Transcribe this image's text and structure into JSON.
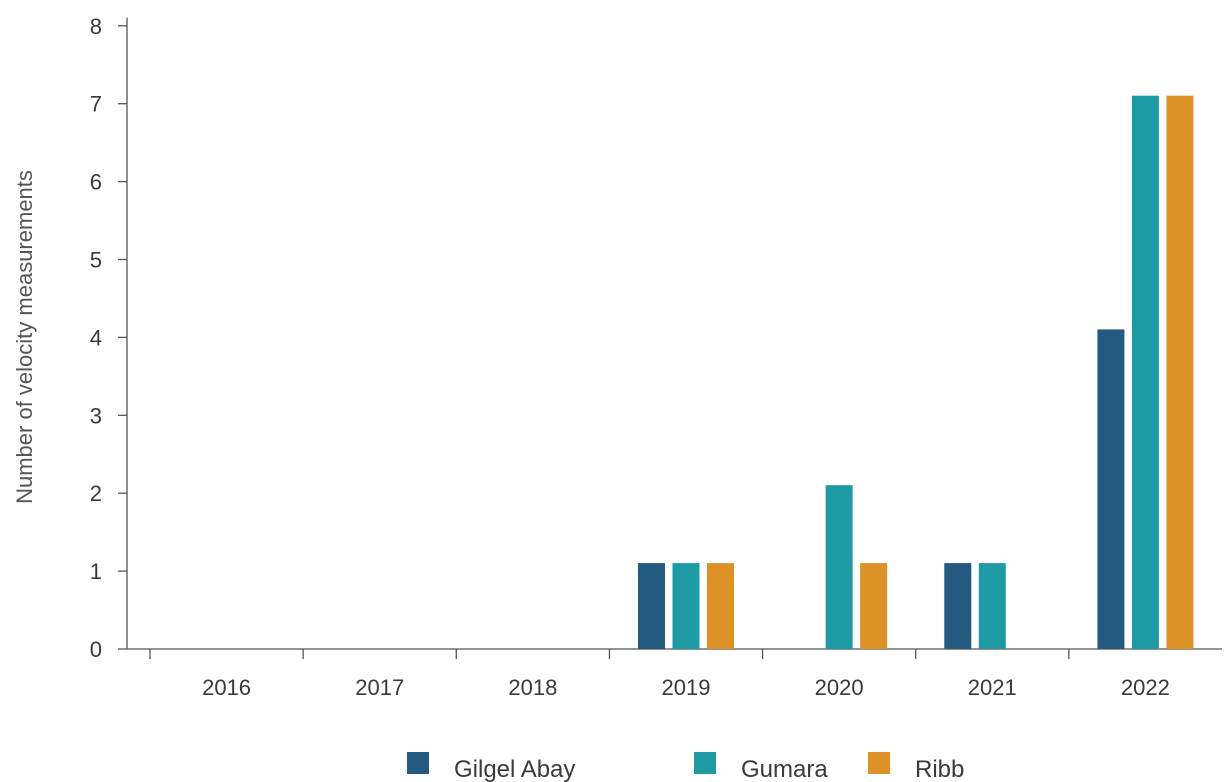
{
  "chart_data": {
    "type": "bar",
    "ylabel": "Number of velocity measurements",
    "xlabel": "",
    "ylim": [
      0,
      8
    ],
    "yticks": [
      0,
      1,
      2,
      3,
      4,
      5,
      6,
      7,
      8
    ],
    "categories": [
      "2016",
      "2017",
      "2018",
      "2019",
      "2020",
      "2021",
      "2022"
    ],
    "series": [
      {
        "name": "Gilgel Abay",
        "color": "#255a80",
        "values": [
          0,
          0,
          0,
          1,
          0,
          1,
          4
        ]
      },
      {
        "name": "Gumara",
        "color": "#1e9aa5",
        "values": [
          0,
          0,
          0,
          1,
          2,
          1,
          7
        ]
      },
      {
        "name": "Ribb",
        "color": "#dc9227",
        "values": [
          0,
          0,
          0,
          1,
          1,
          0,
          7
        ]
      }
    ],
    "legend_position": "bottom",
    "grid": false
  }
}
